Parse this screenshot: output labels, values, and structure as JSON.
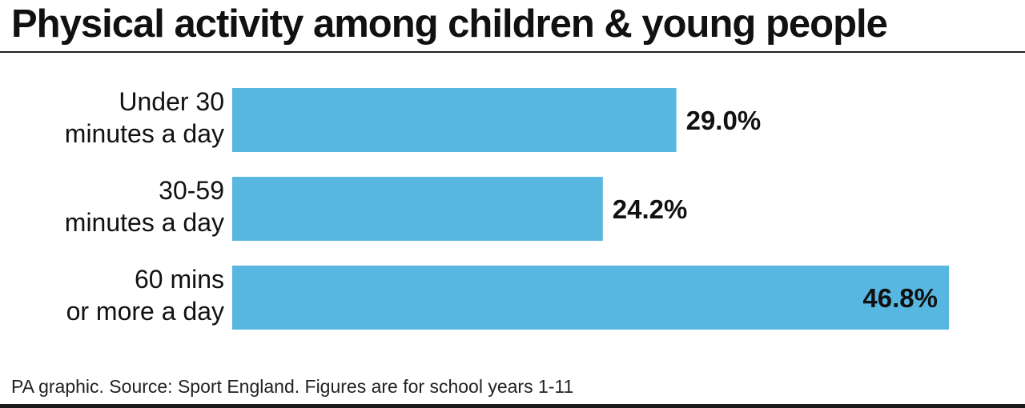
{
  "title": "Physical activity among children & young people",
  "footer": "PA graphic. Source: Sport England. Figures are for school years 1-11",
  "chart_data": {
    "type": "bar",
    "orientation": "horizontal",
    "categories": [
      [
        "Under 30",
        "minutes a day"
      ],
      [
        "30-59",
        "minutes a day"
      ],
      [
        "60 mins",
        "or more a day"
      ]
    ],
    "values": [
      29.0,
      24.2,
      46.8
    ],
    "labels": [
      "29.0%",
      "24.2%",
      "46.8%"
    ],
    "xlim": [
      0,
      46.8
    ],
    "grid": false,
    "bar_color": "#57b7e0",
    "title": "Physical activity among children & young people"
  }
}
